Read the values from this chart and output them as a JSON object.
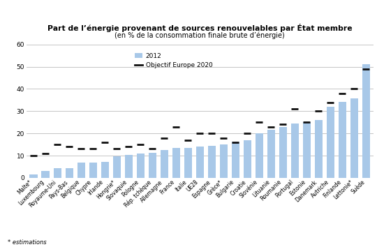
{
  "title": "Part de l’énergie provenant de sources renouvelables par État membre",
  "subtitle": "(en % de la consommation finale brute d’énergie)",
  "footnote": "* estimations",
  "categories": [
    "Malte*",
    "Luxembourg",
    "Royaume-Uni",
    "Pays-Bas",
    "Belgique",
    "Chypre",
    "Irlande",
    "Hongrie*",
    "Slovaquie",
    "Pologne",
    "Rép. tchèque",
    "Allemagne",
    "France",
    "Italie",
    "UE28",
    "Espagne",
    "Grèce*",
    "Bulgarie",
    "Croatie",
    "Slovénie",
    "Lituanie",
    "Roumanie",
    "Portugal",
    "Estonie",
    "Danemark",
    "Autriche",
    "Finlande",
    "Lettonie*",
    "Suède"
  ],
  "values_2012": [
    1.4,
    3.1,
    4.2,
    4.5,
    6.8,
    6.8,
    7.2,
    9.8,
    10.4,
    11.0,
    11.2,
    12.4,
    13.4,
    13.5,
    14.1,
    14.3,
    15.1,
    16.3,
    16.8,
    20.2,
    21.7,
    22.9,
    24.6,
    25.0,
    26.0,
    32.1,
    34.3,
    35.8,
    51.0
  ],
  "values_target": [
    10.0,
    11.0,
    15.0,
    14.0,
    13.0,
    13.0,
    16.0,
    13.0,
    14.0,
    15.0,
    13.0,
    18.0,
    23.0,
    17.0,
    20.0,
    20.0,
    18.0,
    16.0,
    20.0,
    25.0,
    23.0,
    24.0,
    31.0,
    25.0,
    30.0,
    34.0,
    38.0,
    40.0,
    49.0
  ],
  "bar_color": "#a8c8e8",
  "target_color": "#111111",
  "ylim": [
    0,
    60
  ],
  "yticks": [
    0,
    10,
    20,
    30,
    40,
    50,
    60
  ],
  "background_color": "#ffffff",
  "grid_color": "#bbbbbb",
  "legend_label_2012": "2012",
  "legend_label_target": "Objectif Europe 2020"
}
